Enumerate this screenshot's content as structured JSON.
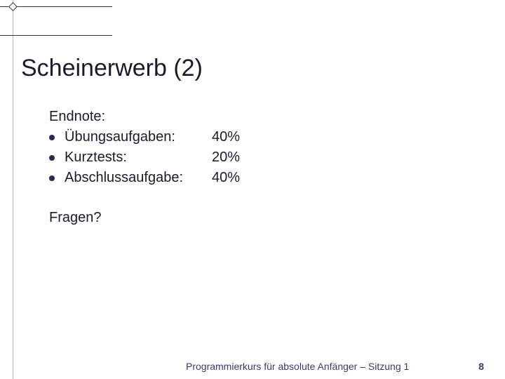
{
  "title": "Scheinerwerb (2)",
  "intro_label": "Endnote:",
  "items": [
    {
      "label": "Übungsaufgaben:",
      "value": "40%"
    },
    {
      "label": "Kurztests:",
      "value": "20%"
    },
    {
      "label": "Abschlussaufgabe:",
      "value": "40%"
    }
  ],
  "question": "Fragen?",
  "footer_text": "Programmierkurs für absolute Anfänger – Sitzung 1",
  "page_number": "8",
  "colors": {
    "text": "#1a1a2e",
    "footer_text": "#3a3a6a",
    "line_dark": "#333344",
    "line_light": "#b8c0d0",
    "bullet": "#2a2a4a",
    "background": "#ffffff"
  },
  "fonts": {
    "title_size": 34,
    "body_size": 20,
    "footer_size": 14
  }
}
